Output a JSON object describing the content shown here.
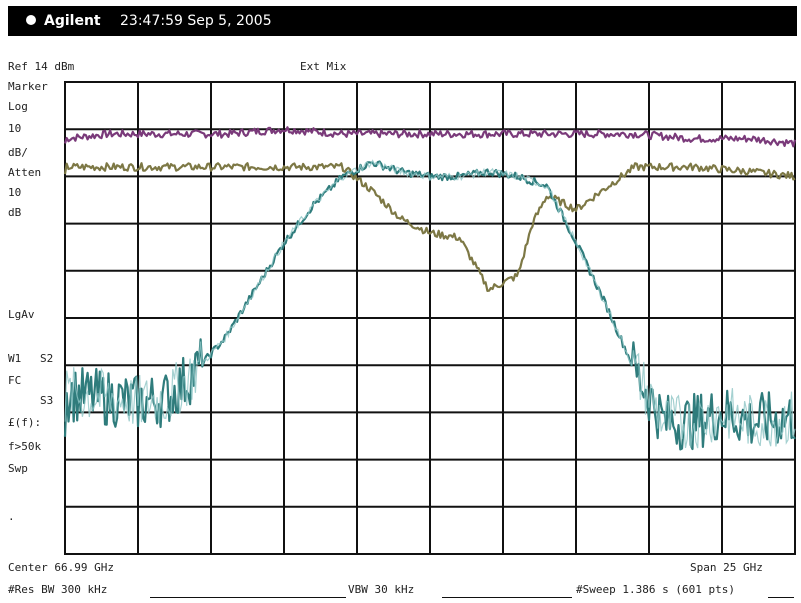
{
  "header": {
    "brand": "Agilent",
    "timestamp": "23:47:59 Sep 5, 2005"
  },
  "left_labels": {
    "ref": "Ref 14 dBm",
    "marker": "Marker",
    "scale": "Log",
    "div": "10",
    "db": "dB/",
    "atten": "Atten",
    "atten_val": "10",
    "atten_unit": "dB",
    "lgav": "LgAv",
    "w1": "W1",
    "s2": "S2",
    "fc": "FC",
    "s3": "S3",
    "afc": "£(f):",
    "ftun": "f>50k",
    "swp": "Swp",
    "dot": "."
  },
  "top_center": "Ext Mix",
  "bottom": {
    "center": "Center 66.99 GHz",
    "span": "Span 25 GHz",
    "res_bw": "#Res BW 300 kHz",
    "vbw": "VBW 30 kHz",
    "sweep": "#Sweep 1.386 s (601 pts)"
  },
  "colors": {
    "grid": "#111111",
    "trace_purple": "#7a3a7a",
    "trace_olive": "#7d7845",
    "trace_teal": "#2f7c7c",
    "trace_noise_dark": "#1b5d5d",
    "trace_noise_light": "#8fc6c6"
  },
  "chart_data": {
    "type": "line",
    "title": "",
    "xlabel": "",
    "ylabel": "",
    "x_range_ghz": [
      54.49,
      79.49
    ],
    "y_range_db": [
      -86,
      14
    ],
    "grid": true,
    "series": [
      {
        "x": [
          54.5,
          56,
          58,
          60,
          62,
          64,
          66,
          68,
          70,
          72,
          74,
          76,
          78,
          79.5
        ],
        "y": [
          2,
          3,
          3,
          3,
          4,
          3,
          3,
          3,
          3,
          3,
          3,
          2,
          2,
          1
        ]
      },
      {
        "x": [
          54.5,
          56,
          58,
          60,
          62,
          64,
          65,
          66,
          67,
          68,
          69,
          70,
          70.5,
          71,
          72,
          74,
          76,
          78,
          79.5
        ],
        "y": [
          -4,
          -4,
          -4,
          -4,
          -4,
          -4,
          -9,
          -15,
          -18,
          -19,
          -30,
          -27,
          -16,
          -10,
          -13,
          -4,
          -4,
          -5,
          -6
        ]
      },
      {
        "x": [
          54.5,
          56,
          57,
          58,
          59,
          60,
          61,
          62,
          63,
          64,
          65,
          66,
          67,
          68,
          69,
          70,
          71,
          72,
          73,
          74,
          75,
          76,
          77,
          78,
          79.5
        ],
        "y": [
          -52,
          -53,
          -54,
          -53,
          -47,
          -40,
          -30,
          -20,
          -12,
          -6,
          -3,
          -5,
          -6,
          -6,
          -5,
          -6,
          -8,
          -20,
          -33,
          -47,
          -58,
          -58,
          -56,
          -58,
          -57
        ]
      }
    ]
  }
}
